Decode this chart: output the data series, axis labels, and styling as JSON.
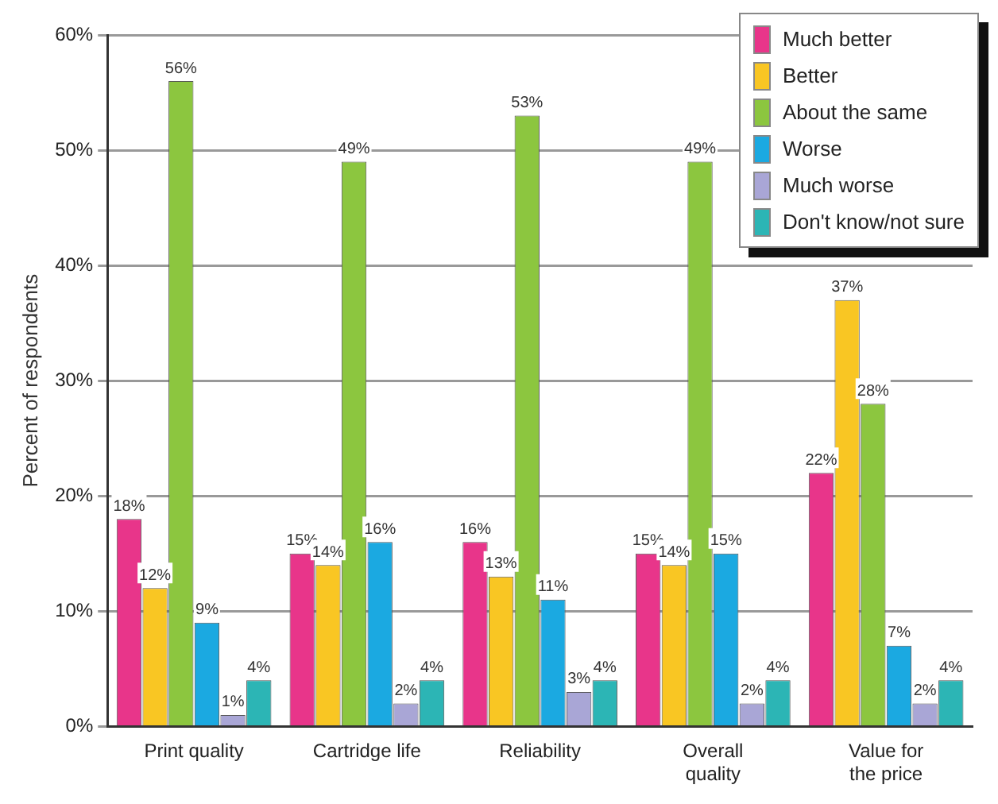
{
  "chart_data": {
    "type": "bar",
    "ylabel": "Percent of respondents",
    "categories": [
      "Print quality",
      "Cartridge life",
      "Reliability",
      "Overall quality",
      "Value for the price"
    ],
    "series": [
      {
        "name": "Much better",
        "color": "#e8358a",
        "values": [
          18,
          15,
          16,
          15,
          22
        ],
        "value_labels": [
          "18%",
          "15%",
          "16%",
          "15%",
          "22%"
        ]
      },
      {
        "name": "Better",
        "color": "#f9c623",
        "values": [
          12,
          14,
          13,
          14,
          37
        ],
        "value_labels": [
          "12%",
          "14%",
          "13%",
          "14%",
          "37%"
        ]
      },
      {
        "name": "About the same",
        "color": "#8cc63f",
        "values": [
          56,
          49,
          53,
          49,
          28
        ],
        "value_labels": [
          "56%",
          "49%",
          "53%",
          "49%",
          "28%"
        ]
      },
      {
        "name": "Worse",
        "color": "#1ba9e1",
        "values": [
          9,
          16,
          11,
          15,
          7
        ],
        "value_labels": [
          "9%",
          "16%",
          "11%",
          "15%",
          "7%"
        ]
      },
      {
        "name": "Much worse",
        "color": "#a9a6d6",
        "values": [
          1,
          2,
          3,
          2,
          2
        ],
        "value_labels": [
          "1%",
          "2%",
          "3%",
          "2%",
          "2%"
        ]
      },
      {
        "name": "Don't know/not sure",
        "color": "#2cb5b5",
        "values": [
          4,
          4,
          4,
          4,
          4
        ],
        "value_labels": [
          "4%",
          "4%",
          "4%",
          "4%",
          "4%"
        ]
      }
    ],
    "ylim": [
      0,
      60
    ],
    "yticks": [
      {
        "value": 0,
        "label": "0%"
      },
      {
        "value": 10,
        "label": "10%"
      },
      {
        "value": 20,
        "label": "20%"
      },
      {
        "value": 30,
        "label": "30%"
      },
      {
        "value": 40,
        "label": "40%"
      },
      {
        "value": 50,
        "label": "50%"
      },
      {
        "value": 60,
        "label": "60%"
      }
    ],
    "grid": "y",
    "legend": "top right"
  }
}
